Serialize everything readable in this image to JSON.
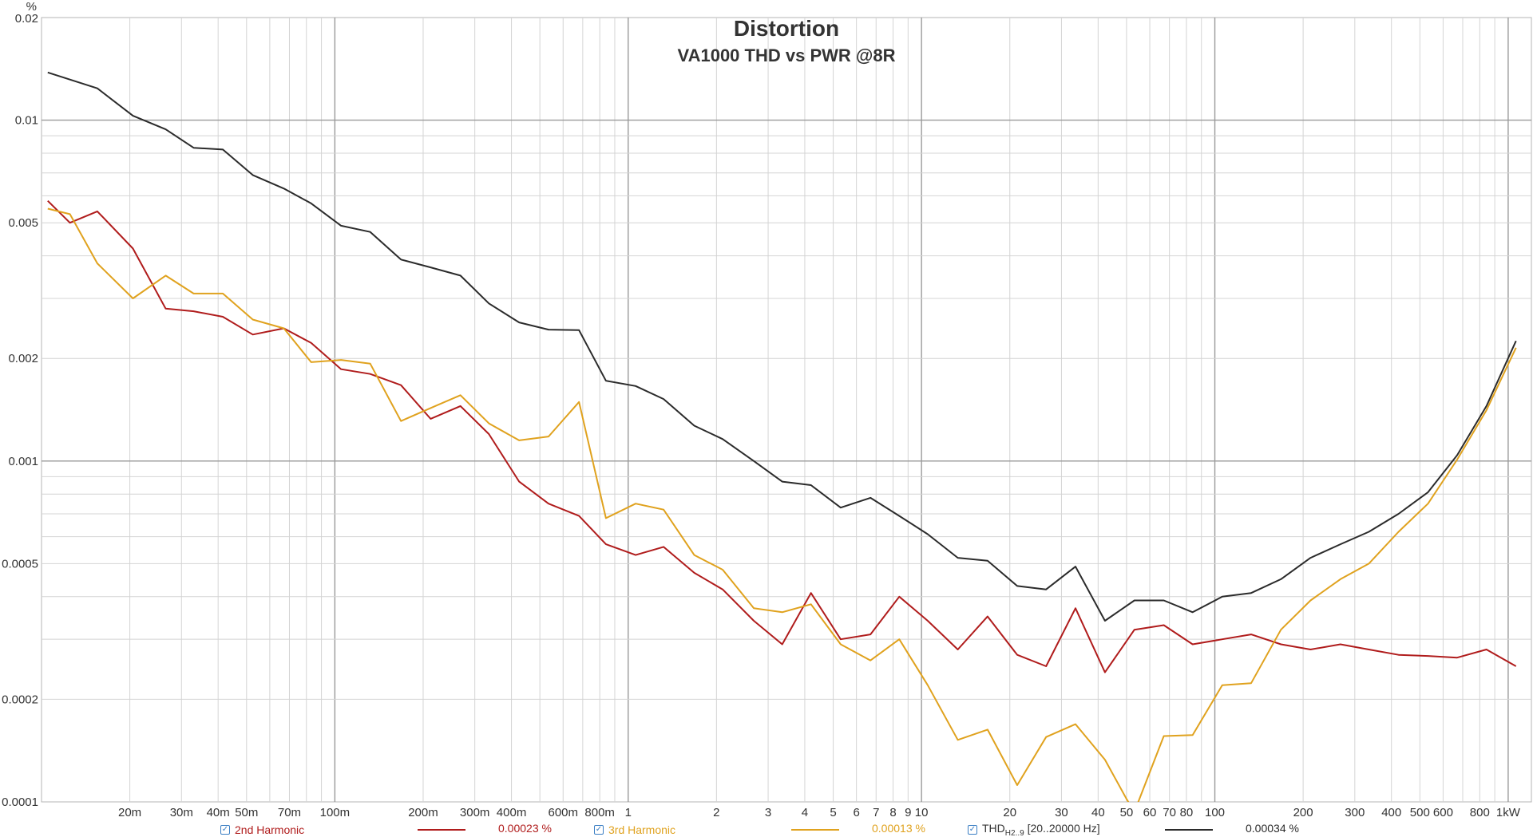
{
  "chart_data": {
    "type": "line",
    "title": "Distortion",
    "subtitle": "VA1000 THD vs PWR @8R",
    "ylabel": "%",
    "xscale": "log",
    "yscale": "log",
    "xlim": [
      0.01,
      1200
    ],
    "ylim": [
      0.0001,
      0.02
    ],
    "x_ticks": [
      {
        "v": 0.02,
        "label": "20m"
      },
      {
        "v": 0.03,
        "label": "30m"
      },
      {
        "v": 0.04,
        "label": "40m"
      },
      {
        "v": 0.05,
        "label": "50m"
      },
      {
        "v": 0.07,
        "label": "70m"
      },
      {
        "v": 0.1,
        "label": "100m"
      },
      {
        "v": 0.2,
        "label": "200m"
      },
      {
        "v": 0.3,
        "label": "300m"
      },
      {
        "v": 0.4,
        "label": "400m"
      },
      {
        "v": 0.6,
        "label": "600m"
      },
      {
        "v": 0.8,
        "label": "800m"
      },
      {
        "v": 1,
        "label": "1"
      },
      {
        "v": 2,
        "label": "2"
      },
      {
        "v": 3,
        "label": "3"
      },
      {
        "v": 4,
        "label": "4"
      },
      {
        "v": 5,
        "label": "5"
      },
      {
        "v": 6,
        "label": "6"
      },
      {
        "v": 7,
        "label": "7"
      },
      {
        "v": 8,
        "label": "8"
      },
      {
        "v": 9,
        "label": "9"
      },
      {
        "v": 10,
        "label": "10"
      },
      {
        "v": 20,
        "label": "20"
      },
      {
        "v": 30,
        "label": "30"
      },
      {
        "v": 40,
        "label": "40"
      },
      {
        "v": 50,
        "label": "50"
      },
      {
        "v": 60,
        "label": "60"
      },
      {
        "v": 70,
        "label": "70"
      },
      {
        "v": 80,
        "label": "80"
      },
      {
        "v": 100,
        "label": "100"
      },
      {
        "v": 200,
        "label": "200"
      },
      {
        "v": 300,
        "label": "300"
      },
      {
        "v": 400,
        "label": "400"
      },
      {
        "v": 500,
        "label": "500"
      },
      {
        "v": 600,
        "label": "600"
      },
      {
        "v": 800,
        "label": "800"
      },
      {
        "v": 1000,
        "label": "1kW"
      }
    ],
    "y_ticks": [
      {
        "v": 0.02,
        "label": "0.02"
      },
      {
        "v": 0.01,
        "label": "0.01"
      },
      {
        "v": 0.005,
        "label": "0.005"
      },
      {
        "v": 0.002,
        "label": "0.002"
      },
      {
        "v": 0.001,
        "label": "0.001"
      },
      {
        "v": 0.0005,
        "label": "0.0005"
      },
      {
        "v": 0.0002,
        "label": "0.0002"
      },
      {
        "v": 0.0001,
        "label": "0.0001"
      }
    ],
    "series": [
      {
        "name": "2nd Harmonic",
        "color": "#b01c1c",
        "value_label": "0.00023 %",
        "x": [
          0.0105,
          0.0125,
          0.0155,
          0.0205,
          0.0265,
          0.033,
          0.0415,
          0.0525,
          0.067,
          0.083,
          0.105,
          0.132,
          0.168,
          0.212,
          0.268,
          0.335,
          0.425,
          0.535,
          0.68,
          0.84,
          1.06,
          1.32,
          1.68,
          2.1,
          2.68,
          3.35,
          4.2,
          5.3,
          6.7,
          8.4,
          10.5,
          13.3,
          16.8,
          21.2,
          26.6,
          33.5,
          42.2,
          53.2,
          67,
          84,
          106,
          133,
          168,
          212,
          268,
          335,
          423,
          533,
          670,
          843,
          1063
        ],
        "y": [
          0.0058,
          0.005,
          0.0054,
          0.0042,
          0.0028,
          0.00275,
          0.00265,
          0.00235,
          0.00245,
          0.00222,
          0.00186,
          0.0018,
          0.00167,
          0.00133,
          0.00145,
          0.0012,
          0.00087,
          0.00075,
          0.00069,
          0.00057,
          0.00053,
          0.00056,
          0.00047,
          0.00042,
          0.00034,
          0.00029,
          0.00041,
          0.0003,
          0.00031,
          0.0004,
          0.00034,
          0.00028,
          0.00035,
          0.00027,
          0.00025,
          0.00037,
          0.00024,
          0.00032,
          0.00033,
          0.00029,
          0.0003,
          0.00031,
          0.00029,
          0.00028,
          0.00029,
          0.00028,
          0.00027,
          0.000268,
          0.000265,
          0.00028,
          0.00025
        ]
      },
      {
        "name": "3rd Harmonic",
        "color": "#e0a21e",
        "value_label": "0.00013 %",
        "x": [
          0.0105,
          0.0125,
          0.0155,
          0.0205,
          0.0265,
          0.033,
          0.0415,
          0.0525,
          0.067,
          0.083,
          0.105,
          0.132,
          0.168,
          0.212,
          0.268,
          0.335,
          0.425,
          0.535,
          0.68,
          0.84,
          1.06,
          1.32,
          1.68,
          2.1,
          2.68,
          3.35,
          4.2,
          5.3,
          6.7,
          8.4,
          10.5,
          13.3,
          16.8,
          21.2,
          26.6,
          33.5,
          42.2,
          50,
          53.2,
          67,
          84,
          106,
          133,
          168,
          212,
          268,
          335,
          423,
          533,
          670,
          843,
          1063
        ],
        "y": [
          0.0055,
          0.0053,
          0.0038,
          0.003,
          0.0035,
          0.0031,
          0.0031,
          0.0026,
          0.00245,
          0.00195,
          0.00198,
          0.00193,
          0.00131,
          0.00143,
          0.00156,
          0.00129,
          0.00115,
          0.00118,
          0.00149,
          0.00068,
          0.00075,
          0.00072,
          0.00053,
          0.00048,
          0.00037,
          0.00036,
          0.00038,
          0.00029,
          0.00026,
          0.0003,
          0.00022,
          0.000152,
          0.000163,
          0.000112,
          0.000155,
          0.000169,
          0.000133,
          0.000102,
          9.35e-05,
          0.000156,
          0.000157,
          0.00022,
          0.000223,
          0.00032,
          0.00039,
          0.00045,
          0.0005,
          0.00062,
          0.00075,
          0.00101,
          0.00141,
          0.00215
        ]
      },
      {
        "name": "THD",
        "name_sub": "H2..9",
        "name_suffix": " [20..20000 Hz]",
        "color": "#2b2b2b",
        "value_label": "0.00034 %",
        "x": [
          0.0105,
          0.0155,
          0.0205,
          0.0265,
          0.033,
          0.0415,
          0.0525,
          0.067,
          0.083,
          0.105,
          0.132,
          0.168,
          0.212,
          0.268,
          0.335,
          0.425,
          0.535,
          0.68,
          0.84,
          1.06,
          1.32,
          1.68,
          2.1,
          2.68,
          3.35,
          4.2,
          5.3,
          6.7,
          8.4,
          10.5,
          13.3,
          16.8,
          21.2,
          26.6,
          33.5,
          42.2,
          53.2,
          67,
          84,
          106,
          133,
          168,
          212,
          268,
          335,
          423,
          533,
          670,
          843,
          1063
        ],
        "y": [
          0.0138,
          0.0124,
          0.0103,
          0.0094,
          0.0083,
          0.0082,
          0.0069,
          0.0063,
          0.0057,
          0.0049,
          0.0047,
          0.0039,
          0.0037,
          0.0035,
          0.0029,
          0.00255,
          0.00243,
          0.00242,
          0.00172,
          0.00166,
          0.00152,
          0.00127,
          0.00116,
          0.001,
          0.00087,
          0.00085,
          0.00073,
          0.00078,
          0.00069,
          0.00061,
          0.00052,
          0.00051,
          0.00043,
          0.00042,
          0.00049,
          0.00034,
          0.00039,
          0.00039,
          0.00036,
          0.0004,
          0.00041,
          0.00045,
          0.00052,
          0.00057,
          0.00062,
          0.0007,
          0.00081,
          0.00104,
          0.00145,
          0.00225
        ]
      }
    ]
  }
}
